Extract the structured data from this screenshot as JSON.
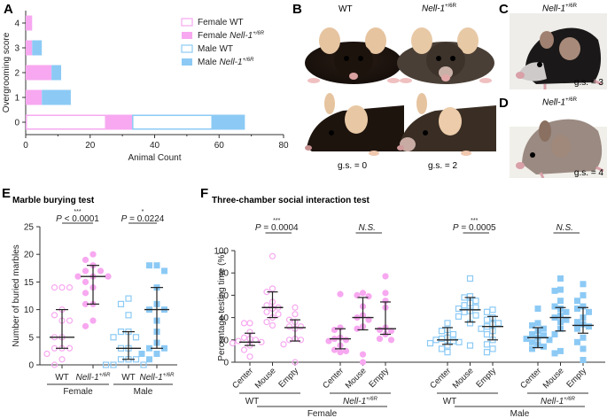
{
  "panels": {
    "A": {
      "letter": "A"
    },
    "B": {
      "letter": "B",
      "col_wt": "WT",
      "col_mut_gene": "Nell-1",
      "col_mut_sup": "+/6R",
      "gs_wt": "g.s. = 0",
      "gs_mut": "g.s. = 2"
    },
    "C": {
      "letter": "C",
      "title_gene": "Nell-1",
      "title_sup": "+/6R",
      "gs": "g.s. = 3"
    },
    "D": {
      "letter": "D",
      "title_gene": "Nell-1",
      "title_sup": "+/6R",
      "gs": "g.s. = 4"
    },
    "E": {
      "letter": "E",
      "title": "Marble burying test"
    },
    "F": {
      "letter": "F",
      "title": "Three-chamber social interaction test"
    }
  },
  "colors": {
    "female": "#f7a8f0",
    "male": "#8ccaf5",
    "axis": "#333333",
    "errorbar": "#222222"
  },
  "chart_data": [
    {
      "id": "A",
      "type": "bar",
      "orientation": "horizontal-stacked",
      "title": "",
      "xlabel": "Animal Count",
      "ylabel": "Overgrooming score",
      "xlim": [
        0,
        80
      ],
      "xticks": [
        0,
        20,
        40,
        60,
        80
      ],
      "categories": [
        "0",
        "1",
        "2",
        "3",
        "4"
      ],
      "series": [
        {
          "name": "Female WT",
          "fill": "open",
          "color": "female",
          "values": [
            25,
            0,
            0,
            0,
            0
          ]
        },
        {
          "name": "Female Nell-1+/6R",
          "fill": "solid",
          "color": "female",
          "values": [
            8,
            5,
            8,
            2,
            2
          ]
        },
        {
          "name": "Male WT",
          "fill": "open",
          "color": "male",
          "values": [
            25,
            0,
            0,
            0,
            0
          ]
        },
        {
          "name": "Male Nell-1+/6R",
          "fill": "solid",
          "color": "male",
          "values": [
            10,
            9,
            3,
            3,
            0
          ]
        }
      ],
      "legend": {
        "placement": "top-right",
        "entries": [
          {
            "label": "Female WT",
            "italic_part": "",
            "sup": ""
          },
          {
            "label": "Female ",
            "italic_part": "Nell-1",
            "sup": "+/6R"
          },
          {
            "label": "Male WT",
            "italic_part": "",
            "sup": ""
          },
          {
            "label": "Male ",
            "italic_part": "Nell-1",
            "sup": "+/6R"
          }
        ]
      }
    },
    {
      "id": "E",
      "type": "scatter",
      "title": "Marble burying test",
      "ylabel": "Number of buried marbles",
      "ylim": [
        0,
        25
      ],
      "yticks": [
        0,
        5,
        10,
        15,
        20,
        25
      ],
      "groups": [
        {
          "label": "WT",
          "italic": false,
          "sex": "Female",
          "color": "female",
          "fill": "open",
          "marker": "circle",
          "points": [
            14,
            14,
            14,
            10,
            9,
            8,
            8,
            5,
            5,
            3,
            3,
            3,
            2,
            1,
            0
          ],
          "median": 5,
          "q1": 3,
          "q3": 10
        },
        {
          "label": "Nell-1",
          "sup": "+/6R",
          "italic": true,
          "sex": "Female",
          "color": "female",
          "fill": "solid",
          "marker": "circle",
          "points": [
            20,
            19,
            18,
            17,
            17,
            16,
            16,
            16,
            15,
            14,
            13,
            11,
            11,
            8,
            7
          ],
          "median": 16,
          "q1": 11,
          "q3": 18
        },
        {
          "label": "WT",
          "italic": false,
          "sex": "Male",
          "color": "male",
          "fill": "open",
          "marker": "square",
          "points": [
            12,
            11,
            9,
            6,
            6,
            5,
            5,
            3,
            3,
            1,
            1,
            1,
            0,
            0,
            0
          ],
          "median": 3,
          "q1": 1,
          "q3": 6
        },
        {
          "label": "Nell-1",
          "sup": "+/6R",
          "italic": true,
          "sex": "Male",
          "color": "male",
          "fill": "solid",
          "marker": "square",
          "points": [
            18,
            18,
            17,
            14,
            11,
            10,
            10,
            8,
            6,
            4,
            3,
            3,
            2,
            2,
            1
          ],
          "median": 10,
          "q1": 3,
          "q3": 14
        }
      ],
      "sex_labels": [
        "Female",
        "Male"
      ],
      "comparisons": [
        {
          "between": [
            0,
            1
          ],
          "stars": "***",
          "p_prefix": "P",
          "p_text": " < 0.0001"
        },
        {
          "between": [
            2,
            3
          ],
          "stars": "*",
          "p_prefix": "P",
          "p_text": " = 0.0224"
        }
      ]
    },
    {
      "id": "F",
      "type": "scatter",
      "title": "Three-chamber social interaction test",
      "ylabel": "Percentage testing time (%)",
      "ylim": [
        0,
        100
      ],
      "yticks": [
        0,
        20,
        40,
        60,
        80,
        100
      ],
      "chambers": [
        "Center",
        "Mouse",
        "Empty"
      ],
      "blocks": [
        {
          "genotype": "WT",
          "italic": false,
          "sex": "Female",
          "color": "female",
          "fill": "open",
          "marker": "circle",
          "comparison": {
            "stars": "***",
            "p_prefix": "P",
            "p_text": " = 0.0004",
            "ns": false
          },
          "groups": [
            {
              "points": [
                35,
                35,
                27,
                22,
                21,
                20,
                19,
                18,
                17,
                15,
                11,
                5
              ],
              "median": 18,
              "q1": 15,
              "q3": 26
            },
            {
              "points": [
                95,
                66,
                63,
                54,
                51,
                49,
                48,
                45,
                43,
                40,
                36,
                33
              ],
              "median": 49,
              "q1": 40,
              "q3": 63
            },
            {
              "points": [
                49,
                43,
                38,
                36,
                32,
                32,
                30,
                21,
                20,
                20,
                16,
                0
              ],
              "median": 31,
              "q1": 19,
              "q3": 38
            }
          ]
        },
        {
          "genotype": "Nell-1",
          "sup": "+/6R",
          "italic": true,
          "sex": "Female",
          "color": "female",
          "fill": "solid",
          "marker": "circle",
          "groups": [
            {
              "points": [
                61,
                31,
                29,
                22,
                21,
                20,
                19,
                15,
                11,
                10,
                9
              ],
              "median": 21,
              "q1": 12,
              "q3": 30
            },
            {
              "points": [
                62,
                60,
                59,
                50,
                42,
                40,
                38,
                32,
                30,
                7,
                0
              ],
              "median": 40,
              "q1": 29,
              "q3": 58
            },
            {
              "points": [
                77,
                62,
                55,
                49,
                31,
                29,
                28,
                25,
                21,
                20
              ],
              "median": 30,
              "q1": 25,
              "q3": 54
            }
          ],
          "comparison": {
            "stars": "",
            "p_prefix": "",
            "p_text": "N.S.",
            "ns": true
          }
        },
        {
          "genotype": "WT",
          "italic": false,
          "sex": "Male",
          "color": "male",
          "fill": "open",
          "marker": "square",
          "groups": [
            {
              "points": [
                35,
                29,
                28,
                25,
                22,
                21,
                20,
                19,
                18,
                17,
                15,
                12,
                9
              ],
              "median": 20,
              "q1": 16,
              "q3": 31
            },
            {
              "points": [
                75,
                59,
                58,
                55,
                53,
                51,
                49,
                48,
                46,
                45,
                42,
                41,
                35,
                15
              ],
              "median": 47,
              "q1": 36,
              "q3": 58
            },
            {
              "points": [
                47,
                45,
                40,
                38,
                35,
                34,
                32,
                30,
                28,
                25,
                20,
                16,
                12,
                9
              ],
              "median": 32,
              "q1": 20,
              "q3": 41
            }
          ],
          "comparison": {
            "stars": "***",
            "p_prefix": "P",
            "p_text": " = 0.0005",
            "ns": false
          }
        },
        {
          "genotype": "Nell-1",
          "sup": "+/6R",
          "italic": true,
          "sex": "Male",
          "color": "male",
          "fill": "solid",
          "marker": "square",
          "groups": [
            {
              "points": [
                48,
                35,
                33,
                30,
                28,
                25,
                24,
                22,
                21,
                20,
                18,
                16,
                14,
                12
              ],
              "median": 22,
              "q1": 13,
              "q3": 31
            },
            {
              "points": [
                75,
                65,
                64,
                55,
                50,
                48,
                45,
                42,
                40,
                38,
                36,
                30,
                25,
                10,
                8
              ],
              "median": 40,
              "q1": 28,
              "q3": 49
            },
            {
              "points": [
                70,
                60,
                55,
                50,
                48,
                45,
                40,
                36,
                34,
                32,
                30,
                22,
                18,
                12,
                2
              ],
              "median": 33,
              "q1": 26,
              "q3": 49
            }
          ],
          "comparison": {
            "stars": "",
            "p_prefix": "",
            "p_text": "N.S.",
            "ns": true
          }
        }
      ],
      "sex_labels": [
        "Female",
        "Male"
      ]
    }
  ]
}
